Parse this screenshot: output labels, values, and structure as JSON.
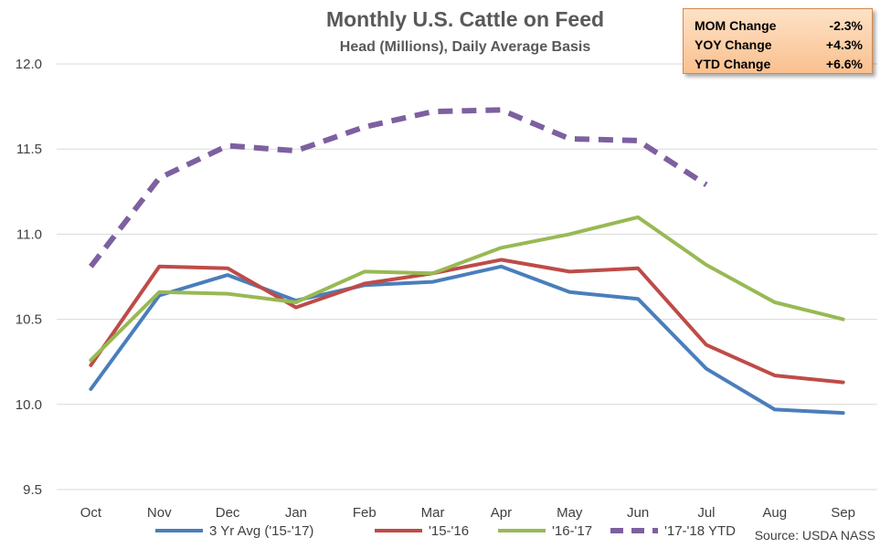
{
  "chart_data": {
    "type": "line",
    "title": "Monthly U.S. Cattle on Feed",
    "subtitle": "Head (Millions), Daily Average Basis",
    "categories": [
      "Oct",
      "Nov",
      "Dec",
      "Jan",
      "Feb",
      "Mar",
      "Apr",
      "May",
      "Jun",
      "Jul",
      "Aug",
      "Sep"
    ],
    "ylim": [
      9.5,
      12.0
    ],
    "yticks": [
      "9.5",
      "10.0",
      "10.5",
      "11.0",
      "11.5",
      "12.0"
    ],
    "ytick_values": [
      9.5,
      10.0,
      10.5,
      11.0,
      11.5,
      12.0
    ],
    "grid": true,
    "legend_position": "bottom",
    "series": [
      {
        "name": "3 Yr Avg ('15-'17)",
        "color": "#4a7ebb",
        "dashed": false,
        "values": [
          10.09,
          10.64,
          10.76,
          10.61,
          10.7,
          10.72,
          10.81,
          10.66,
          10.62,
          10.21,
          9.97,
          9.95
        ]
      },
      {
        "name": "'15-'16",
        "color": "#be4b48",
        "dashed": false,
        "values": [
          10.23,
          10.81,
          10.8,
          10.57,
          10.71,
          10.77,
          10.85,
          10.78,
          10.8,
          10.35,
          10.17,
          10.13
        ]
      },
      {
        "name": "'16-'17",
        "color": "#98b954",
        "dashed": false,
        "values": [
          10.26,
          10.66,
          10.65,
          10.6,
          10.78,
          10.77,
          10.92,
          11.0,
          11.1,
          10.82,
          10.6,
          10.5
        ]
      },
      {
        "name": "'17-'18 YTD",
        "color": "#7d60a0",
        "dashed": true,
        "values": [
          10.81,
          11.33,
          11.52,
          11.49,
          11.63,
          11.72,
          11.73,
          11.56,
          11.55,
          11.29,
          null,
          null
        ]
      }
    ],
    "source": "Source: USDA NASS"
  },
  "stats": [
    {
      "label": "MOM Change",
      "value": "-2.3%"
    },
    {
      "label": "YOY Change",
      "value": "+4.3%"
    },
    {
      "label": "YTD Change",
      "value": "+6.6%"
    }
  ]
}
